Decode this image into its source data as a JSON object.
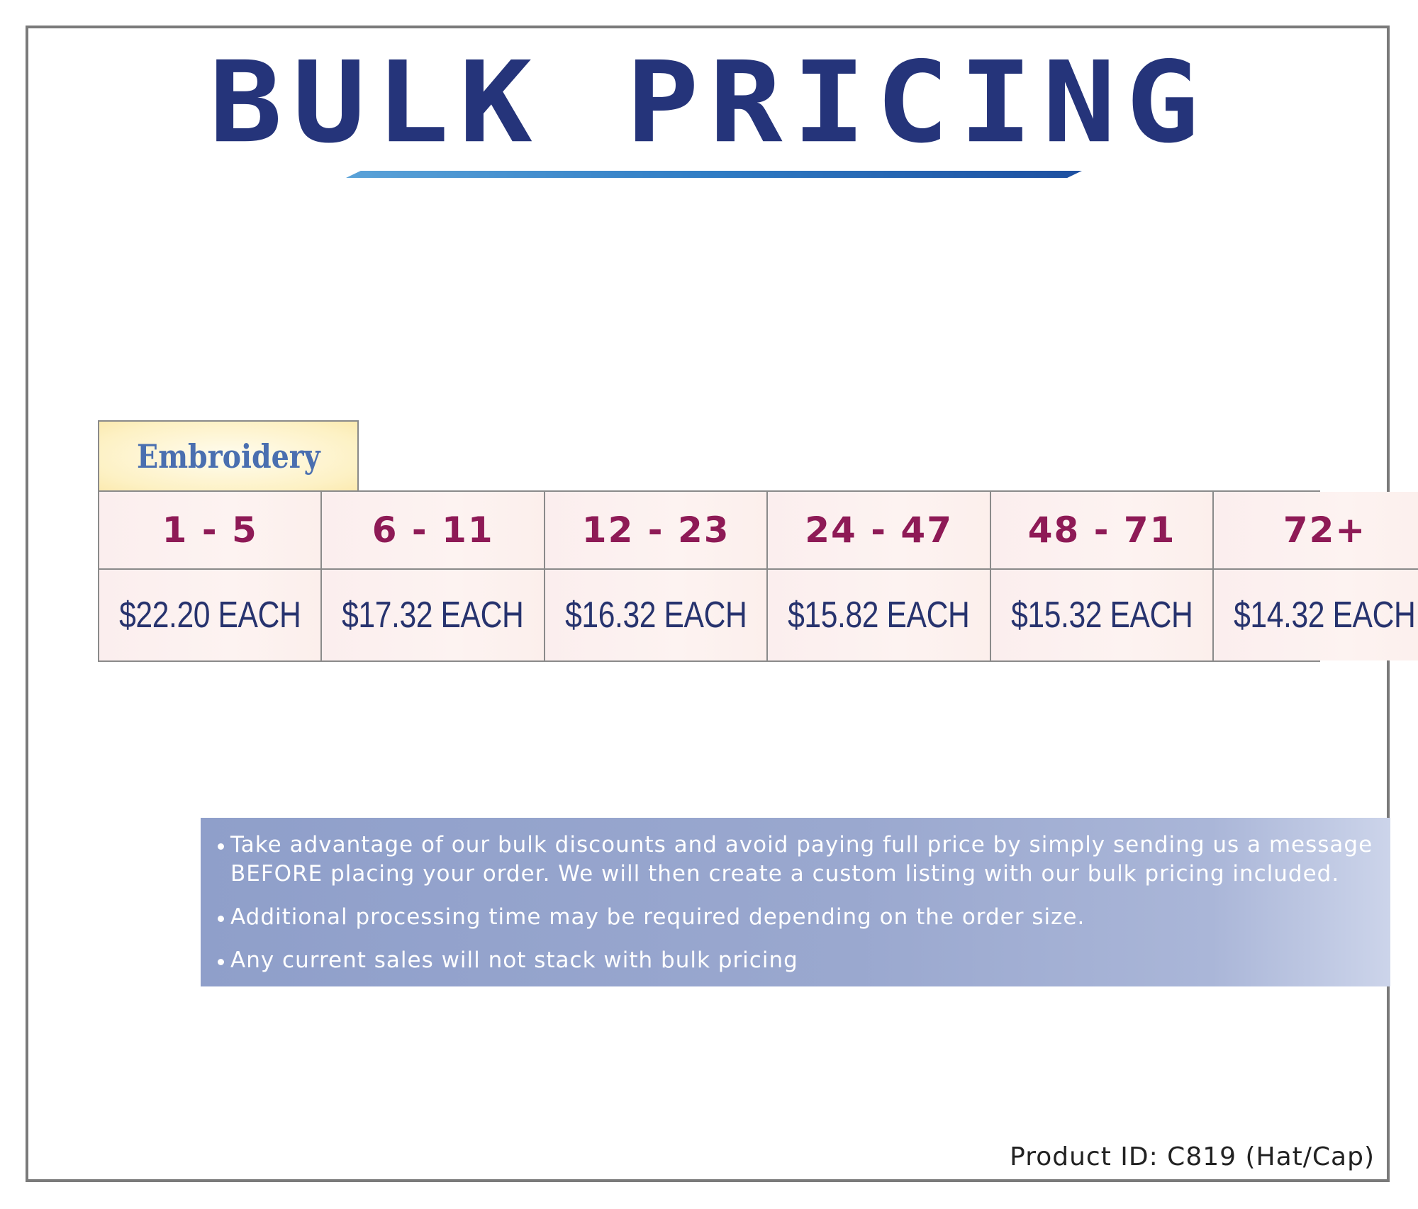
{
  "title": "BULK PRICING",
  "category": "Embroidery",
  "tiers": [
    {
      "qty": "1 - 5",
      "price": "$22.20 EACH"
    },
    {
      "qty": "6 - 11",
      "price": "$17.32 EACH"
    },
    {
      "qty": "12 - 23",
      "price": "$16.32 EACH"
    },
    {
      "qty": "24 - 47",
      "price": "$15.82 EACH"
    },
    {
      "qty": "48 - 71",
      "price": "$15.32 EACH"
    },
    {
      "qty": "72+",
      "price": "$14.32 EACH"
    }
  ],
  "notes": [
    "Take advantage of our bulk discounts and avoid paying full price by simply sending us a message BEFORE placing your order. We will then create a custom listing with our bulk pricing included.",
    "Additional processing time may be required depending on the order size.",
    "Any current sales will not stack with bulk pricing"
  ],
  "product_id": "Product ID: C819 (Hat/Cap)",
  "colors": {
    "title": "#25347a",
    "quantity": "#8e1a56",
    "price": "#27336e",
    "category": "#4a6fb0"
  }
}
